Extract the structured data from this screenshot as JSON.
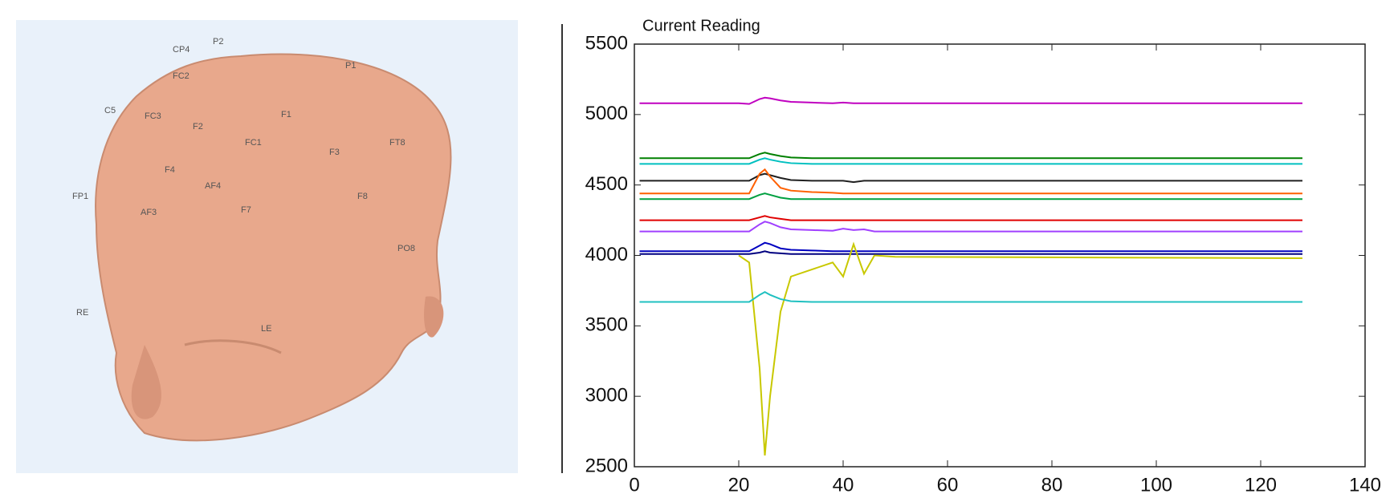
{
  "head_labels": [
    "CP4",
    "P2",
    "P1",
    "FC2",
    "FC3",
    "C5",
    "F2",
    "F1",
    "FC1",
    "F3",
    "F4",
    "AF3",
    "F8",
    "AF4",
    "F7",
    "FT8",
    "FP1",
    "PO8",
    "RE",
    "LE"
  ],
  "chart_data": {
    "type": "line",
    "title": "Current Reading",
    "x": [
      1,
      20,
      22,
      24,
      25,
      26,
      28,
      30,
      34,
      38,
      40,
      42,
      44,
      46,
      50,
      128
    ],
    "xlim": [
      0,
      140
    ],
    "xticks": [
      0,
      20,
      40,
      60,
      80,
      100,
      120,
      140
    ],
    "ylim": [
      2500,
      5500
    ],
    "yticks": [
      2500,
      3000,
      3500,
      4000,
      4500,
      5000,
      5500
    ],
    "series": [
      {
        "color": "#c000c0",
        "values": [
          5080,
          5080,
          5075,
          5110,
          5120,
          5115,
          5100,
          5090,
          5085,
          5080,
          5085,
          5080,
          5080,
          5080,
          5080,
          5080
        ]
      },
      {
        "color": "#008000",
        "values": [
          4690,
          4690,
          4690,
          4720,
          4730,
          4720,
          4705,
          4695,
          4690,
          4690,
          4690,
          4690,
          4690,
          4690,
          4690,
          4690
        ]
      },
      {
        "color": "#00c0c0",
        "values": [
          4650,
          4650,
          4650,
          4680,
          4690,
          4680,
          4665,
          4655,
          4650,
          4650,
          4650,
          4650,
          4650,
          4650,
          4650,
          4650
        ]
      },
      {
        "color": "#202020",
        "values": [
          4530,
          4530,
          4530,
          4570,
          4580,
          4570,
          4550,
          4535,
          4530,
          4530,
          4530,
          4520,
          4530,
          4530,
          4530,
          4530
        ]
      },
      {
        "color": "#ff6000",
        "values": [
          4440,
          4440,
          4440,
          4580,
          4610,
          4560,
          4480,
          4460,
          4450,
          4445,
          4440,
          4440,
          4440,
          4440,
          4440,
          4440
        ]
      },
      {
        "color": "#00a040",
        "values": [
          4400,
          4400,
          4400,
          4430,
          4440,
          4430,
          4410,
          4400,
          4400,
          4400,
          4400,
          4400,
          4400,
          4400,
          4400,
          4400
        ]
      },
      {
        "color": "#e00000",
        "values": [
          4250,
          4250,
          4250,
          4270,
          4280,
          4270,
          4260,
          4250,
          4250,
          4250,
          4250,
          4250,
          4250,
          4250,
          4250,
          4250
        ]
      },
      {
        "color": "#a040ff",
        "values": [
          4170,
          4170,
          4170,
          4220,
          4240,
          4230,
          4200,
          4185,
          4180,
          4175,
          4190,
          4180,
          4185,
          4170,
          4170,
          4170
        ]
      },
      {
        "color": "#0000c0",
        "values": [
          4030,
          4030,
          4030,
          4070,
          4090,
          4080,
          4050,
          4040,
          4035,
          4030,
          4030,
          4030,
          4030,
          4030,
          4030,
          4030
        ]
      },
      {
        "color": "#000080",
        "values": [
          4010,
          4010,
          4010,
          4020,
          4030,
          4020,
          4015,
          4010,
          4010,
          4010,
          4010,
          4010,
          4010,
          4010,
          4010,
          4010
        ]
      },
      {
        "color": "#c8c800",
        "values": [
          null,
          4000,
          3950,
          3200,
          2580,
          3000,
          3600,
          3850,
          3900,
          3950,
          3850,
          4080,
          3870,
          4000,
          3990,
          3980
        ]
      },
      {
        "color": "#20c0c0",
        "values": [
          3670,
          3670,
          3670,
          3720,
          3740,
          3720,
          3690,
          3675,
          3670,
          3670,
          3670,
          3670,
          3670,
          3670,
          3670,
          3670
        ]
      }
    ]
  }
}
